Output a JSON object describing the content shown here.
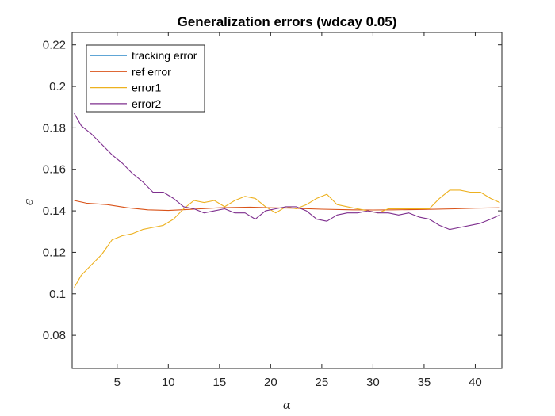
{
  "chart_data": {
    "type": "line",
    "title": "Generalization errors (wdcay 0.05)",
    "xlabel": "α",
    "ylabel": "ϵ",
    "xlim": [
      0.6,
      42.6
    ],
    "ylim": [
      0.064,
      0.226
    ],
    "xticks": [
      5,
      10,
      15,
      20,
      25,
      30,
      35,
      40
    ],
    "yticks": [
      0.08,
      0.1,
      0.12,
      0.14,
      0.16,
      0.18,
      0.2,
      0.22
    ],
    "ytick_labels": [
      "0.08",
      "0.1",
      "0.12",
      "0.14",
      "0.16",
      "0.18",
      "0.2",
      "0.22"
    ],
    "grid": false,
    "legend_position": "top-left",
    "series": [
      {
        "name": "tracking error",
        "color": "#0072BD",
        "x": [],
        "y": []
      },
      {
        "name": "ref error",
        "color": "#D95319",
        "x": [
          0.8,
          2,
          4,
          6,
          8,
          10,
          12,
          15,
          18,
          20,
          22,
          25,
          28,
          30,
          32,
          35,
          38,
          40,
          42.4
        ],
        "y": [
          0.145,
          0.1437,
          0.143,
          0.1415,
          0.1405,
          0.1402,
          0.1407,
          0.1415,
          0.1418,
          0.1415,
          0.1413,
          0.1408,
          0.1405,
          0.1404,
          0.1405,
          0.1407,
          0.141,
          0.1413,
          0.1415
        ]
      },
      {
        "name": "error1",
        "color": "#EDB120",
        "x": [
          0.8,
          1.5,
          2.5,
          3.5,
          4.5,
          5.5,
          6.5,
          7.5,
          8.5,
          9.5,
          10.5,
          11.5,
          12.5,
          13.5,
          14.5,
          15.5,
          16.5,
          17.5,
          18.5,
          19.5,
          20.5,
          21.5,
          22.5,
          23.5,
          24.5,
          25.5,
          26.5,
          27.5,
          28.5,
          29.5,
          30.5,
          31.5,
          32.5,
          33.5,
          34.5,
          35.5,
          36.5,
          37.5,
          38.5,
          39.5,
          40.5,
          41.5,
          42.4
        ],
        "y": [
          0.103,
          0.109,
          0.114,
          0.119,
          0.126,
          0.128,
          0.129,
          0.131,
          0.132,
          0.133,
          0.136,
          0.141,
          0.145,
          0.144,
          0.145,
          0.142,
          0.145,
          0.147,
          0.146,
          0.142,
          0.139,
          0.142,
          0.141,
          0.143,
          0.146,
          0.148,
          0.143,
          0.142,
          0.141,
          0.14,
          0.139,
          0.141,
          0.141,
          0.141,
          0.141,
          0.141,
          0.146,
          0.15,
          0.15,
          0.149,
          0.149,
          0.146,
          0.144
        ]
      },
      {
        "name": "error2",
        "color": "#7E2F8E",
        "x": [
          0.8,
          1.5,
          2.5,
          3.5,
          4.5,
          5.5,
          6.5,
          7.5,
          8.5,
          9.5,
          10.5,
          11.5,
          12.5,
          13.5,
          14.5,
          15.5,
          16.5,
          17.5,
          18.5,
          19.5,
          20.5,
          21.5,
          22.5,
          23.5,
          24.5,
          25.5,
          26.5,
          27.5,
          28.5,
          29.5,
          30.5,
          31.5,
          32.5,
          33.5,
          34.5,
          35.5,
          36.5,
          37.5,
          38.5,
          39.5,
          40.5,
          41.5,
          42.4
        ],
        "y": [
          0.187,
          0.181,
          0.177,
          0.172,
          0.167,
          0.163,
          0.158,
          0.154,
          0.149,
          0.149,
          0.146,
          0.142,
          0.141,
          0.139,
          0.14,
          0.141,
          0.139,
          0.139,
          0.136,
          0.14,
          0.141,
          0.142,
          0.142,
          0.14,
          0.136,
          0.135,
          0.138,
          0.139,
          0.139,
          0.14,
          0.139,
          0.139,
          0.138,
          0.139,
          0.137,
          0.136,
          0.133,
          0.131,
          0.132,
          0.133,
          0.134,
          0.136,
          0.138
        ]
      }
    ]
  }
}
